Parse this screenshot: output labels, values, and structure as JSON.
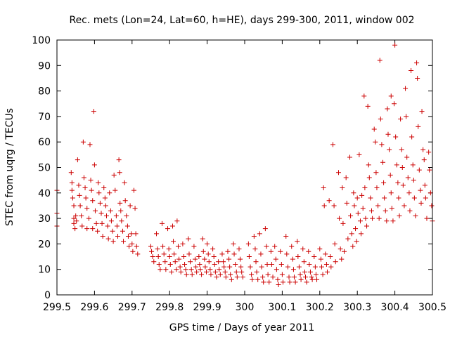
{
  "chart_data": {
    "type": "scatter",
    "title": "Rec. mets (Lon=24, Lat=60, h=HE), days 299-300, 2011, window 002",
    "xlabel": "GPS time / Days of year 2011",
    "ylabel": "STEC from uqrg / TECUs",
    "xlim": [
      299.5,
      300.5
    ],
    "ylim": [
      0,
      100
    ],
    "x_ticks": [
      "299.5",
      "299.6",
      "299.7",
      "299.8",
      "299.9",
      "300",
      "300.1",
      "300.2",
      "300.3",
      "300.4",
      "300.5"
    ],
    "y_ticks": [
      "0",
      "10",
      "20",
      "30",
      "40",
      "50",
      "60",
      "70",
      "80",
      "90",
      "100"
    ],
    "grid": false,
    "marker": "plus",
    "color": "#cc0000",
    "points": [
      [
        299.5,
        41
      ],
      [
        299.5,
        32
      ],
      [
        299.5,
        27
      ],
      [
        299.538,
        48
      ],
      [
        299.54,
        44
      ],
      [
        299.54,
        41
      ],
      [
        299.542,
        38
      ],
      [
        299.545,
        35
      ],
      [
        299.545,
        30
      ],
      [
        299.545,
        28
      ],
      [
        299.548,
        26
      ],
      [
        299.55,
        31
      ],
      [
        299.552,
        29
      ],
      [
        299.555,
        53
      ],
      [
        299.558,
        43
      ],
      [
        299.56,
        39
      ],
      [
        299.562,
        35
      ],
      [
        299.565,
        31
      ],
      [
        299.567,
        27
      ],
      [
        299.57,
        60
      ],
      [
        299.572,
        46
      ],
      [
        299.575,
        42
      ],
      [
        299.577,
        38
      ],
      [
        299.58,
        34
      ],
      [
        299.58,
        26
      ],
      [
        299.585,
        30
      ],
      [
        299.588,
        59
      ],
      [
        299.59,
        45
      ],
      [
        299.592,
        41
      ],
      [
        299.595,
        37
      ],
      [
        299.595,
        26
      ],
      [
        299.598,
        72
      ],
      [
        299.6,
        51
      ],
      [
        299.602,
        33
      ],
      [
        299.605,
        28
      ],
      [
        299.608,
        25
      ],
      [
        299.61,
        44
      ],
      [
        299.612,
        40
      ],
      [
        299.615,
        36
      ],
      [
        299.618,
        32
      ],
      [
        299.62,
        28
      ],
      [
        299.622,
        23
      ],
      [
        299.625,
        42
      ],
      [
        299.628,
        38
      ],
      [
        299.63,
        35
      ],
      [
        299.632,
        31
      ],
      [
        299.635,
        27
      ],
      [
        299.637,
        22
      ],
      [
        299.64,
        40
      ],
      [
        299.643,
        33
      ],
      [
        299.645,
        29
      ],
      [
        299.648,
        25
      ],
      [
        299.65,
        21
      ],
      [
        299.652,
        47
      ],
      [
        299.655,
        41
      ],
      [
        299.658,
        31
      ],
      [
        299.66,
        27
      ],
      [
        299.662,
        23
      ],
      [
        299.665,
        53
      ],
      [
        299.667,
        48
      ],
      [
        299.668,
        36
      ],
      [
        299.67,
        33
      ],
      [
        299.672,
        29
      ],
      [
        299.675,
        25
      ],
      [
        299.677,
        21
      ],
      [
        299.68,
        44
      ],
      [
        299.682,
        37
      ],
      [
        299.685,
        31
      ],
      [
        299.688,
        27
      ],
      [
        299.69,
        23
      ],
      [
        299.692,
        19
      ],
      [
        299.695,
        35
      ],
      [
        299.698,
        24
      ],
      [
        299.7,
        20
      ],
      [
        299.702,
        17
      ],
      [
        299.705,
        41
      ],
      [
        299.708,
        34
      ],
      [
        299.71,
        24
      ],
      [
        299.712,
        19
      ],
      [
        299.715,
        16
      ],
      [
        299.75,
        19
      ],
      [
        299.752,
        17
      ],
      [
        299.755,
        15
      ],
      [
        299.758,
        13
      ],
      [
        299.765,
        24
      ],
      [
        299.768,
        18
      ],
      [
        299.77,
        15
      ],
      [
        299.772,
        12
      ],
      [
        299.775,
        10
      ],
      [
        299.78,
        28
      ],
      [
        299.782,
        19
      ],
      [
        299.785,
        16
      ],
      [
        299.788,
        13
      ],
      [
        299.79,
        10
      ],
      [
        299.795,
        26
      ],
      [
        299.798,
        18
      ],
      [
        299.8,
        15
      ],
      [
        299.802,
        12
      ],
      [
        299.805,
        9
      ],
      [
        299.808,
        27
      ],
      [
        299.81,
        21
      ],
      [
        299.812,
        16
      ],
      [
        299.815,
        13
      ],
      [
        299.818,
        10
      ],
      [
        299.82,
        29
      ],
      [
        299.823,
        19
      ],
      [
        299.825,
        14
      ],
      [
        299.828,
        11
      ],
      [
        299.83,
        9
      ],
      [
        299.835,
        20
      ],
      [
        299.838,
        15
      ],
      [
        299.84,
        12
      ],
      [
        299.843,
        10
      ],
      [
        299.845,
        8
      ],
      [
        299.85,
        22
      ],
      [
        299.852,
        16
      ],
      [
        299.855,
        13
      ],
      [
        299.858,
        10
      ],
      [
        299.86,
        8
      ],
      [
        299.865,
        19
      ],
      [
        299.868,
        14
      ],
      [
        299.87,
        11
      ],
      [
        299.872,
        9
      ],
      [
        299.878,
        15
      ],
      [
        299.88,
        12
      ],
      [
        299.882,
        10
      ],
      [
        299.885,
        8
      ],
      [
        299.888,
        22
      ],
      [
        299.89,
        17
      ],
      [
        299.893,
        14
      ],
      [
        299.895,
        11
      ],
      [
        299.898,
        9
      ],
      [
        299.9,
        20
      ],
      [
        299.903,
        16
      ],
      [
        299.905,
        13
      ],
      [
        299.908,
        10
      ],
      [
        299.91,
        8
      ],
      [
        299.915,
        18
      ],
      [
        299.918,
        15
      ],
      [
        299.92,
        12
      ],
      [
        299.922,
        9
      ],
      [
        299.925,
        7
      ],
      [
        299.93,
        13
      ],
      [
        299.932,
        10
      ],
      [
        299.935,
        8
      ],
      [
        299.94,
        16
      ],
      [
        299.943,
        13
      ],
      [
        299.945,
        11
      ],
      [
        299.948,
        9
      ],
      [
        299.95,
        7
      ],
      [
        299.955,
        17
      ],
      [
        299.958,
        14
      ],
      [
        299.96,
        11
      ],
      [
        299.962,
        8
      ],
      [
        299.965,
        6
      ],
      [
        299.97,
        20
      ],
      [
        299.972,
        16
      ],
      [
        299.975,
        12
      ],
      [
        299.978,
        9
      ],
      [
        299.98,
        7
      ],
      [
        299.985,
        18
      ],
      [
        299.988,
        14
      ],
      [
        299.99,
        11
      ],
      [
        299.992,
        9
      ],
      [
        299.995,
        7
      ],
      [
        300.01,
        20
      ],
      [
        300.012,
        15
      ],
      [
        300.015,
        11
      ],
      [
        300.018,
        8
      ],
      [
        300.02,
        6
      ],
      [
        300.025,
        23
      ],
      [
        300.028,
        18
      ],
      [
        300.03,
        13
      ],
      [
        300.032,
        9
      ],
      [
        300.035,
        6
      ],
      [
        300.04,
        24
      ],
      [
        300.043,
        16
      ],
      [
        300.045,
        11
      ],
      [
        300.048,
        7
      ],
      [
        300.05,
        5
      ],
      [
        300.055,
        26
      ],
      [
        300.058,
        19
      ],
      [
        300.06,
        12
      ],
      [
        300.062,
        8
      ],
      [
        300.065,
        5
      ],
      [
        300.07,
        17
      ],
      [
        300.072,
        12
      ],
      [
        300.075,
        7
      ],
      [
        300.08,
        19
      ],
      [
        300.083,
        14
      ],
      [
        300.085,
        10
      ],
      [
        300.088,
        6
      ],
      [
        300.09,
        4
      ],
      [
        300.095,
        17
      ],
      [
        300.098,
        12
      ],
      [
        300.1,
        8
      ],
      [
        300.102,
        5
      ],
      [
        300.11,
        23
      ],
      [
        300.112,
        16
      ],
      [
        300.115,
        11
      ],
      [
        300.118,
        7
      ],
      [
        300.12,
        5
      ],
      [
        300.125,
        19
      ],
      [
        300.128,
        14
      ],
      [
        300.13,
        10
      ],
      [
        300.132,
        7
      ],
      [
        300.135,
        5
      ],
      [
        300.14,
        21
      ],
      [
        300.142,
        15
      ],
      [
        300.145,
        11
      ],
      [
        300.148,
        8
      ],
      [
        300.15,
        6
      ],
      [
        300.155,
        18
      ],
      [
        300.158,
        13
      ],
      [
        300.16,
        9
      ],
      [
        300.162,
        7
      ],
      [
        300.165,
        5
      ],
      [
        300.17,
        17
      ],
      [
        300.172,
        12
      ],
      [
        300.175,
        9
      ],
      [
        300.178,
        7
      ],
      [
        300.18,
        6
      ],
      [
        300.185,
        15
      ],
      [
        300.188,
        11
      ],
      [
        300.19,
        8
      ],
      [
        300.192,
        6
      ],
      [
        300.2,
        18
      ],
      [
        300.203,
        14
      ],
      [
        300.205,
        11
      ],
      [
        300.208,
        8
      ],
      [
        300.21,
        42
      ],
      [
        300.212,
        35
      ],
      [
        300.215,
        16
      ],
      [
        300.218,
        12
      ],
      [
        300.22,
        9
      ],
      [
        300.225,
        37
      ],
      [
        300.228,
        15
      ],
      [
        300.23,
        11
      ],
      [
        300.235,
        59
      ],
      [
        300.238,
        35
      ],
      [
        300.24,
        20
      ],
      [
        300.242,
        13
      ],
      [
        300.25,
        48
      ],
      [
        300.252,
        30
      ],
      [
        300.255,
        18
      ],
      [
        300.258,
        14
      ],
      [
        300.26,
        42
      ],
      [
        300.262,
        28
      ],
      [
        300.265,
        17
      ],
      [
        300.27,
        46
      ],
      [
        300.272,
        36
      ],
      [
        300.275,
        22
      ],
      [
        300.28,
        54
      ],
      [
        300.282,
        31
      ],
      [
        300.285,
        24
      ],
      [
        300.288,
        19
      ],
      [
        300.29,
        40
      ],
      [
        300.292,
        35
      ],
      [
        300.295,
        26
      ],
      [
        300.298,
        21
      ],
      [
        300.3,
        38
      ],
      [
        300.302,
        32
      ],
      [
        300.305,
        55
      ],
      [
        300.308,
        29
      ],
      [
        300.31,
        24
      ],
      [
        300.312,
        39
      ],
      [
        300.315,
        34
      ],
      [
        300.318,
        78
      ],
      [
        300.32,
        42
      ],
      [
        300.322,
        30
      ],
      [
        300.325,
        27
      ],
      [
        300.328,
        74
      ],
      [
        300.33,
        51
      ],
      [
        300.332,
        46
      ],
      [
        300.335,
        38
      ],
      [
        300.338,
        33
      ],
      [
        300.34,
        30
      ],
      [
        300.345,
        65
      ],
      [
        300.348,
        60
      ],
      [
        300.35,
        48
      ],
      [
        300.352,
        42
      ],
      [
        300.355,
        35
      ],
      [
        300.358,
        30
      ],
      [
        300.36,
        92
      ],
      [
        300.362,
        69
      ],
      [
        300.365,
        59
      ],
      [
        300.368,
        52
      ],
      [
        300.37,
        44
      ],
      [
        300.372,
        38
      ],
      [
        300.375,
        33
      ],
      [
        300.378,
        29
      ],
      [
        300.38,
        73
      ],
      [
        300.382,
        63
      ],
      [
        300.385,
        57
      ],
      [
        300.388,
        47
      ],
      [
        300.39,
        40
      ],
      [
        300.39,
        78
      ],
      [
        300.392,
        34
      ],
      [
        300.395,
        29
      ],
      [
        300.398,
        75
      ],
      [
        300.4,
        98
      ],
      [
        300.402,
        62
      ],
      [
        300.405,
        51
      ],
      [
        300.408,
        44
      ],
      [
        300.41,
        38
      ],
      [
        300.412,
        31
      ],
      [
        300.415,
        69
      ],
      [
        300.418,
        57
      ],
      [
        300.42,
        50
      ],
      [
        300.422,
        43
      ],
      [
        300.425,
        35
      ],
      [
        300.428,
        81
      ],
      [
        300.43,
        70
      ],
      [
        300.432,
        54
      ],
      [
        300.435,
        46
      ],
      [
        300.438,
        40
      ],
      [
        300.44,
        33
      ],
      [
        300.443,
        88
      ],
      [
        300.445,
        62
      ],
      [
        300.448,
        51
      ],
      [
        300.45,
        45
      ],
      [
        300.452,
        38
      ],
      [
        300.455,
        31
      ],
      [
        300.458,
        91
      ],
      [
        300.46,
        85
      ],
      [
        300.462,
        66
      ],
      [
        300.465,
        49
      ],
      [
        300.468,
        41
      ],
      [
        300.47,
        36
      ],
      [
        300.472,
        72
      ],
      [
        300.475,
        57
      ],
      [
        300.478,
        53
      ],
      [
        300.48,
        43
      ],
      [
        300.482,
        38
      ],
      [
        300.485,
        30
      ],
      [
        300.49,
        56
      ],
      [
        300.492,
        49
      ],
      [
        300.495,
        40
      ],
      [
        300.498,
        35
      ],
      [
        300.5,
        29
      ]
    ]
  }
}
